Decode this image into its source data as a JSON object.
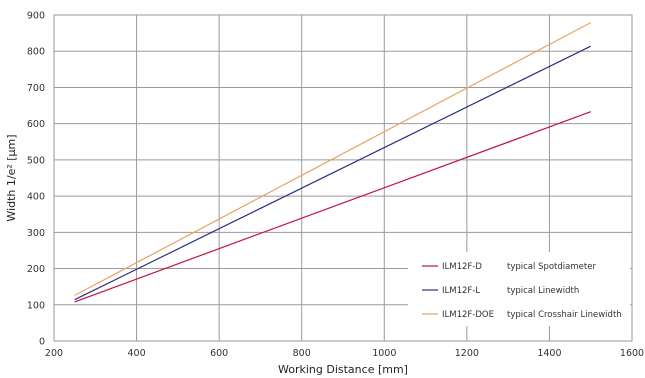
{
  "chart_data": {
    "type": "line",
    "xlabel": "Working Distance [mm]",
    "ylabel": "Width 1/e² [µm]",
    "xlim": [
      200,
      1600
    ],
    "ylim": [
      0,
      900
    ],
    "xticks": [
      200,
      400,
      600,
      800,
      1000,
      1200,
      1400,
      1600
    ],
    "yticks": [
      0,
      100,
      200,
      300,
      400,
      500,
      600,
      700,
      800,
      900
    ],
    "grid": true,
    "legend_position": "bottom-right",
    "series": [
      {
        "name": "ILM12F-D",
        "description": "typical Spotdiameter",
        "color": "#c0143c",
        "x": [
          250,
          1500
        ],
        "y": [
          108,
          633
        ]
      },
      {
        "name": "ILM12F-L",
        "description": "typical Linewidth",
        "color": "#2e2e82",
        "x": [
          250,
          1500
        ],
        "y": [
          114,
          814
        ]
      },
      {
        "name": "ILM12F-DOE",
        "description": "typical Crosshair Linewidth",
        "color": "#e8a365",
        "x": [
          250,
          1500
        ],
        "y": [
          126,
          879
        ]
      }
    ]
  }
}
